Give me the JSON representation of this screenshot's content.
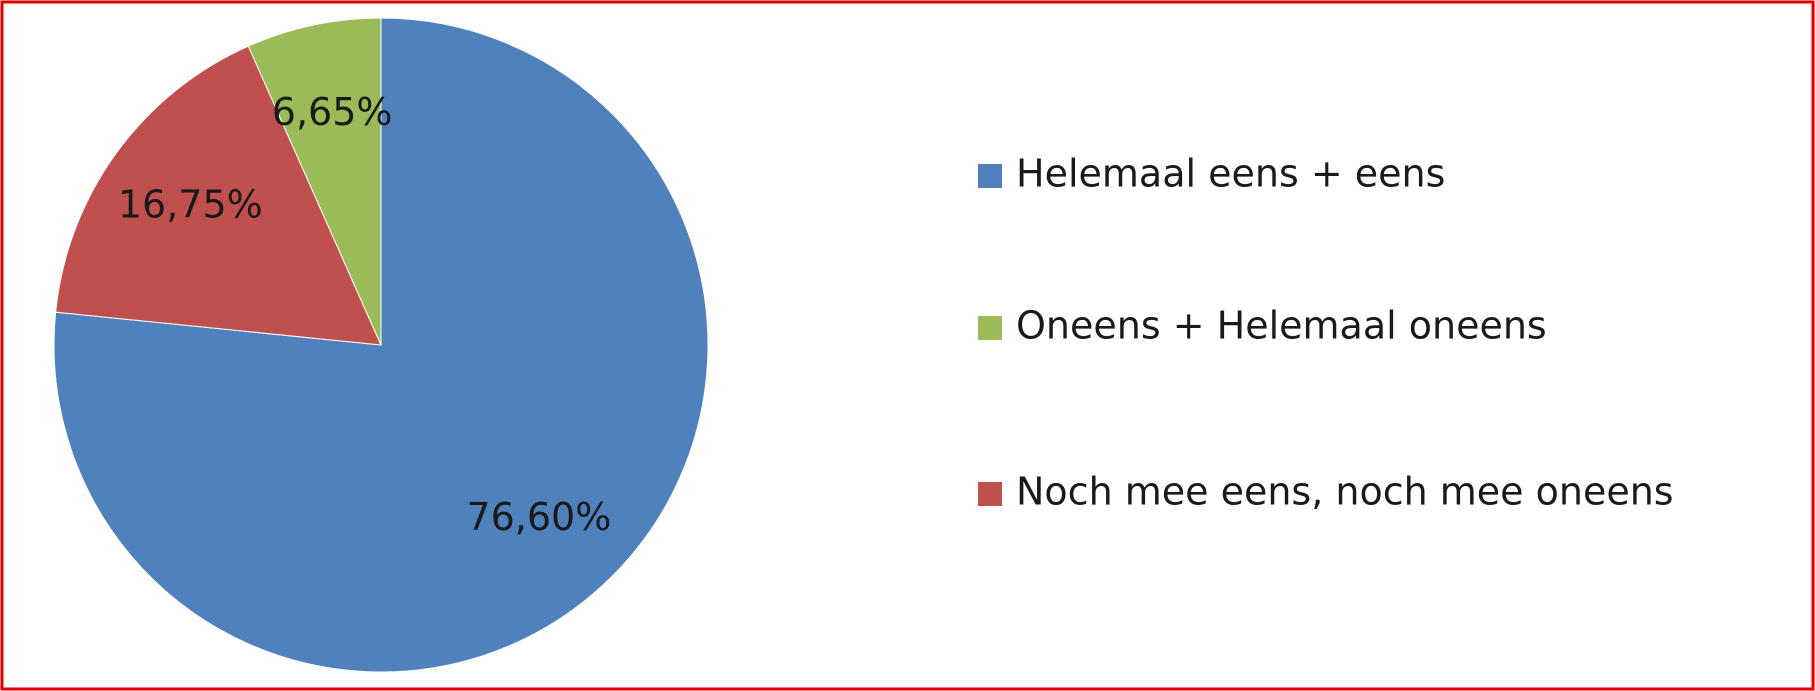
{
  "chart_data": {
    "type": "pie",
    "categories": [
      "Helemaal eens + eens",
      "Oneens + Helemaal oneens",
      "Noch mee eens, noch mee oneens"
    ],
    "values": [
      76.6,
      6.65,
      16.75
    ],
    "value_labels": [
      "76,60%",
      "6,65%",
      "16,75%"
    ],
    "colors": [
      "#4f81bd",
      "#9bbb59",
      "#c0504d"
    ],
    "legend": "right"
  }
}
